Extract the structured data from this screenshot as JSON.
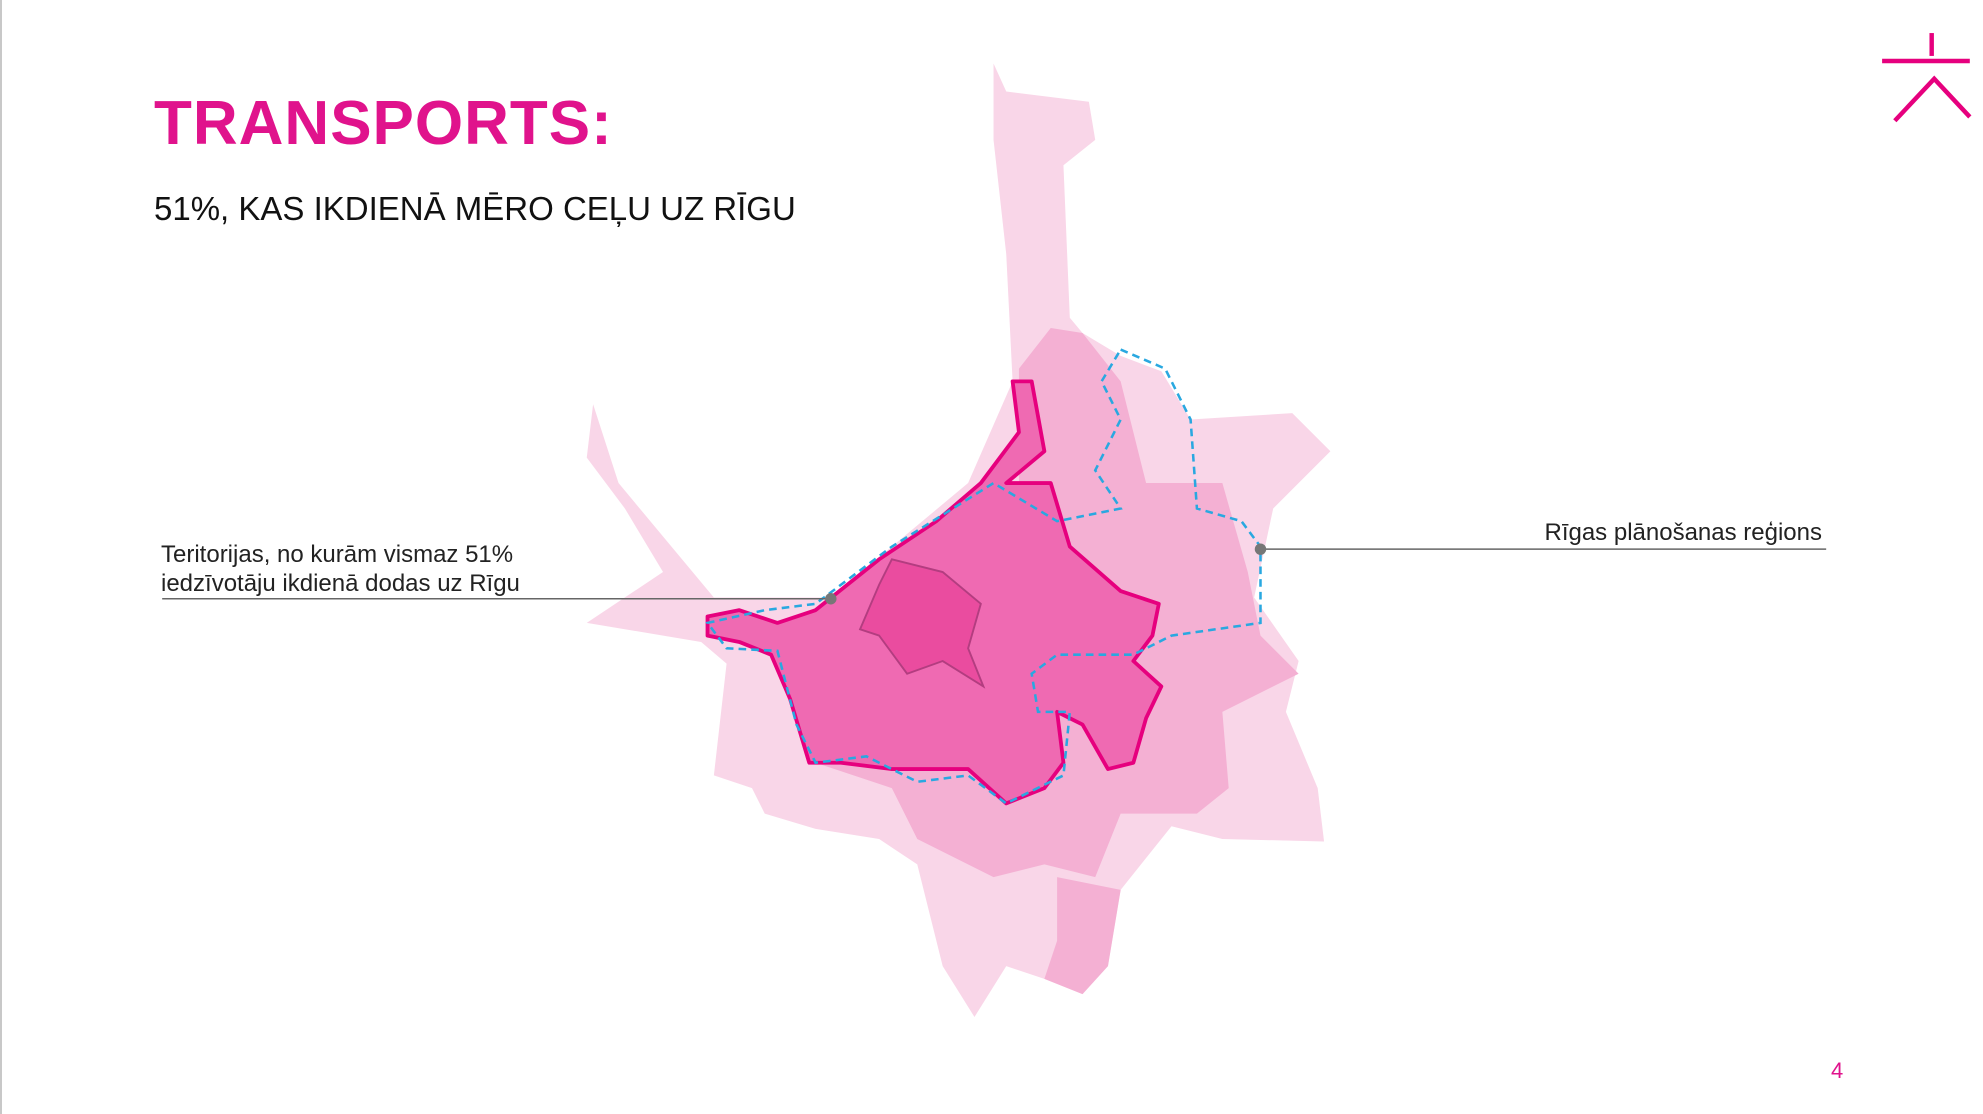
{
  "header": {
    "title": "TRANSPORTS:",
    "subtitle": "51%, KAS IKDIENĀ MĒRO CEĻU UZ RĪGU"
  },
  "map": {
    "left_label": [
      "Teritorijas, no kurām vismaz 51%",
      "iedzīvotāju ikdienā dodas uz Rīgu"
    ],
    "right_label": "Rīgas plānošanas reģions"
  },
  "footer": {
    "page_number": "4"
  }
}
